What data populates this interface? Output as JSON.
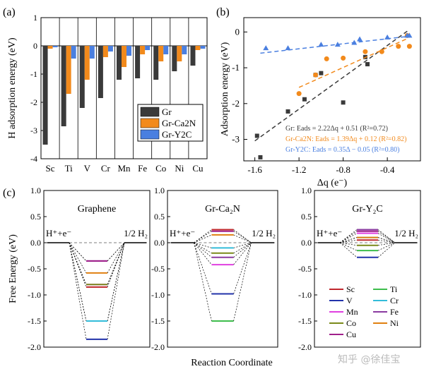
{
  "panel_labels": {
    "a": "(a)",
    "b": "(b)",
    "c": "(c)"
  },
  "colors": {
    "gr": "#3a3a3a",
    "gr_ca2n": "#f28a1c",
    "gr_y2c": "#4a7fe0",
    "Sc": "#c0272d",
    "Ti": "#3dbd4c",
    "V": "#2233aa",
    "Cr": "#33bcd9",
    "Mn": "#e040e0",
    "Fe": "#8a3aa0",
    "Co": "#7a8a1a",
    "Ni": "#e08010",
    "Cu": "#a0208a"
  },
  "chart_data": [
    {
      "type": "bar",
      "panel": "(a)",
      "ylabel": "H adsorption energy (eV)",
      "ylim": [
        -4,
        1
      ],
      "yticks": [
        -4,
        -3,
        -2,
        -1,
        0,
        1
      ],
      "categories": [
        "Sc",
        "Ti",
        "V",
        "Cr",
        "Mn",
        "Fe",
        "Co",
        "Ni",
        "Cu"
      ],
      "legend_position": "bottom-right",
      "series": [
        {
          "name": "Gr",
          "values": [
            -3.5,
            -2.85,
            -2.2,
            -1.85,
            -1.2,
            -1.15,
            -1.2,
            -0.9,
            -0.7
          ]
        },
        {
          "name": "Gr-Ca2N",
          "values": [
            -0.1,
            -1.7,
            -1.2,
            -0.4,
            -0.75,
            -0.3,
            -0.55,
            -0.55,
            -0.15
          ]
        },
        {
          "name": "Gr-Y2C",
          "values": [
            -0.05,
            -0.45,
            -0.45,
            -0.2,
            -0.35,
            -0.15,
            -0.3,
            -0.3,
            -0.1
          ]
        }
      ]
    },
    {
      "type": "scatter",
      "panel": "(b)",
      "xlabel": "Δq (e⁻)",
      "ylabel": "Adsorption energy (eV)",
      "xlim": [
        -1.7,
        -0.1
      ],
      "ylim": [
        -3.6,
        0.4
      ],
      "xticks": [
        -1.6,
        -1.2,
        -0.8,
        -0.4
      ],
      "yticks": [
        -3,
        -2,
        -1,
        0
      ],
      "series": [
        {
          "name": "Gr",
          "marker": "square",
          "x": [
            -1.58,
            -1.55,
            -1.3,
            -1.15,
            -1.05,
            -1.0,
            -0.8,
            -0.6,
            -0.58
          ],
          "y": [
            -2.9,
            -3.5,
            -2.22,
            -1.88,
            -1.2,
            -1.15,
            -1.97,
            -0.7,
            -0.9
          ],
          "fit": {
            "slope": 2.22,
            "intercept": 0.51,
            "x_range": [
              -1.6,
              -0.22
            ]
          },
          "equation": "Gr: Eads = 2.22Δq + 0.51 (R²=0.72)"
        },
        {
          "name": "Gr-Ca2N",
          "marker": "circle",
          "x": [
            -1.2,
            -1.05,
            -0.95,
            -0.8,
            -0.6,
            -0.45,
            -0.3,
            -0.22,
            -0.2
          ],
          "y": [
            -1.72,
            -1.2,
            -0.75,
            -0.73,
            -0.55,
            -0.55,
            -0.4,
            -0.1,
            -0.4
          ],
          "fit": {
            "slope": 1.39,
            "intercept": 0.12,
            "x_range": [
              -1.2,
              -0.22
            ]
          },
          "equation": "Gr-Ca2N: Eads = 1.39Δq + 0.12 (R²=0.82)"
        },
        {
          "name": "Gr-Y2C",
          "marker": "triangle",
          "x": [
            -1.5,
            -1.3,
            -1.0,
            -0.85,
            -0.7,
            -0.65,
            -0.4,
            -0.22,
            -0.2
          ],
          "y": [
            -0.45,
            -0.45,
            -0.35,
            -0.35,
            -0.3,
            -0.2,
            -0.15,
            -0.1,
            -0.1
          ],
          "fit": {
            "slope": 0.35,
            "intercept": -0.05,
            "x_range": [
              -1.55,
              -0.2
            ]
          },
          "equation": "Gr-Y2C: Eads = 0.35Δ − 0.05 (R²=0.80)"
        }
      ]
    },
    {
      "type": "line",
      "panel": "(c)",
      "ylabel": "Free Energy (eV)",
      "xlabel": "Reaction Coordinate",
      "ylim": [
        -2.0,
        1.0
      ],
      "yticks": [
        -2.0,
        -1.5,
        -1.0,
        -0.5,
        0.0,
        0.5,
        1.0
      ],
      "start_label": "H⁺+e⁻",
      "end_label": "1/2 H₂",
      "legend_order": [
        "Sc",
        "Ti",
        "V",
        "Cr",
        "Mn",
        "Fe",
        "Co",
        "Ni",
        "Cu"
      ],
      "subplots": [
        {
          "title": "Graphene",
          "levels": {
            "Sc": -0.85,
            "Ti": -1.5,
            "V": -1.85,
            "Cr": -1.5,
            "Mn": -0.8,
            "Fe": -0.35,
            "Co": -0.8,
            "Ni": -0.58,
            "Cu": -0.35
          }
        },
        {
          "title": "Gr-Ca₂N",
          "levels": {
            "Sc": 0.25,
            "Ti": -1.5,
            "V": -0.98,
            "Cr": -0.1,
            "Mn": -0.42,
            "Fe": -0.28,
            "Co": -0.2,
            "Ni": 0.15,
            "Cu": 0.22
          }
        },
        {
          "title": "Gr-Y₂C",
          "levels": {
            "Sc": 0.05,
            "Ti": -0.15,
            "V": -0.28,
            "Cr": 0.1,
            "Mn": 0.18,
            "Fe": 0.25,
            "Co": -0.05,
            "Ni": 0.1,
            "Cu": 0.22
          }
        }
      ]
    }
  ],
  "watermark": "知乎 @徐佳宝"
}
